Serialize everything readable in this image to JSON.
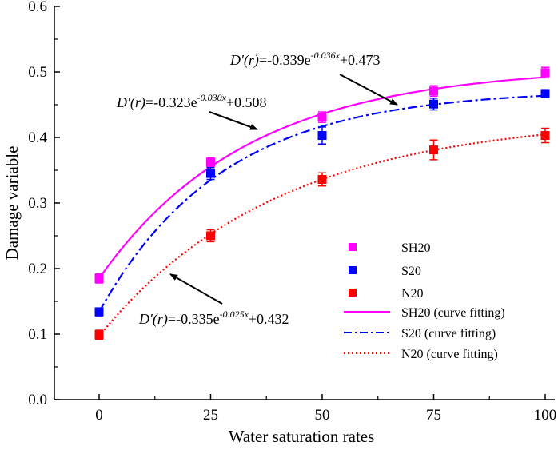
{
  "chart_data": {
    "type": "scatter",
    "xlabel": "Water saturation rates",
    "ylabel": "Damage variable",
    "xlim": [
      -10,
      100
    ],
    "ylim": [
      0.0,
      0.6
    ],
    "x": [
      0,
      25,
      50,
      75,
      100
    ],
    "xticks": [
      "0",
      "25",
      "50",
      "75",
      "100"
    ],
    "yticks": [
      "0.0",
      "0.1",
      "0.2",
      "0.3",
      "0.4",
      "0.5",
      "0.6"
    ],
    "grid": false,
    "legend_position": "bottom-right",
    "series": [
      {
        "name": "SH20",
        "color": "#ff00ff",
        "marker": "square",
        "values": [
          0.185,
          0.362,
          0.431,
          0.471,
          0.499
        ],
        "errors": [
          0.007,
          0.007,
          0.008,
          0.008,
          0.008
        ]
      },
      {
        "name": "S20",
        "color": "#0000ff",
        "marker": "square",
        "values": [
          0.134,
          0.345,
          0.403,
          0.451,
          0.467
        ],
        "errors": [
          0.006,
          0.009,
          0.013,
          0.009,
          0.006
        ]
      },
      {
        "name": "N20",
        "color": "#ff0000",
        "marker": "square",
        "values": [
          0.099,
          0.25,
          0.336,
          0.381,
          0.403
        ],
        "errors": [
          0.007,
          0.009,
          0.01,
          0.015,
          0.011
        ]
      }
    ],
    "fits": [
      {
        "name": "SH20 (curve fitting)",
        "color": "#ff00ff",
        "style": "solid",
        "a": -0.323,
        "b": -0.03,
        "c": 0.508
      },
      {
        "name": "S20 (curve fitting)",
        "color": "#0000ff",
        "style": "dashdot",
        "a": -0.339,
        "b": -0.036,
        "c": 0.473
      },
      {
        "name": "N20 (curve fitting)",
        "color": "#ff0000",
        "style": "dotted",
        "a": -0.335,
        "b": -0.025,
        "c": 0.432
      }
    ],
    "annotations": {
      "sh20": {
        "lhs": "D′(r)",
        "mid": "=-0.323e",
        "exp": "-0.030x",
        "rhs": "+0.508"
      },
      "s20": {
        "lhs": "D′(r)",
        "mid": "=-0.339e",
        "exp": "-0.036x",
        "rhs": "+0.473"
      },
      "n20": {
        "lhs": "D′(r)",
        "mid": "=-0.335e",
        "exp": "-0.025x",
        "rhs": "+0.432"
      }
    }
  }
}
